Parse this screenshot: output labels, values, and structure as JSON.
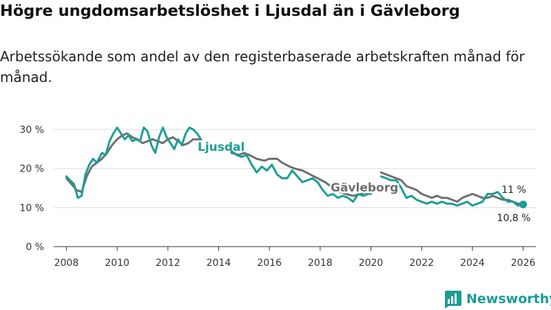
{
  "chart_data": {
    "type": "line",
    "title": "Högre ungdomsarbetslöshet i Ljusdal än i Gävleborg",
    "subtitle": "Arbetssökande som andel av den registerbaserade arbetskraften månad för månad.",
    "ylim": [
      0,
      30
    ],
    "yticks": [
      {
        "value": 0,
        "label": "0 %"
      },
      {
        "value": 10,
        "label": "10 %"
      },
      {
        "value": 20,
        "label": "20 %"
      },
      {
        "value": 30,
        "label": "30 %"
      }
    ],
    "xlim": [
      2007.5,
      2026.5
    ],
    "xticks": [
      {
        "value": 2008,
        "label": "2008"
      },
      {
        "value": 2010,
        "label": "2010"
      },
      {
        "value": 2012,
        "label": "2012"
      },
      {
        "value": 2014,
        "label": "2014"
      },
      {
        "value": 2016,
        "label": "2016"
      },
      {
        "value": 2018,
        "label": "2018"
      },
      {
        "value": 2020,
        "label": "2020"
      },
      {
        "value": 2022,
        "label": "2022"
      },
      {
        "value": 2024,
        "label": "2024"
      },
      {
        "value": 2026,
        "label": "2026"
      }
    ],
    "series": [
      {
        "name": "Gävleborg",
        "color": "#6f6f6f",
        "segments": [
          [
            [
              2008.0,
              17.5
            ],
            [
              2008.2,
              16.0
            ],
            [
              2008.4,
              14.5
            ],
            [
              2008.6,
              14.0
            ],
            [
              2008.8,
              18.0
            ],
            [
              2009.0,
              20.5
            ],
            [
              2009.2,
              21.5
            ],
            [
              2009.4,
              22.5
            ],
            [
              2009.6,
              24.0
            ],
            [
              2009.8,
              26.0
            ],
            [
              2010.0,
              27.5
            ],
            [
              2010.2,
              28.5
            ],
            [
              2010.4,
              29.0
            ],
            [
              2010.6,
              28.0
            ],
            [
              2010.8,
              27.5
            ],
            [
              2011.0,
              26.5
            ],
            [
              2011.2,
              27.0
            ],
            [
              2011.4,
              27.5
            ],
            [
              2011.6,
              27.0
            ],
            [
              2011.8,
              26.5
            ],
            [
              2012.0,
              27.5
            ],
            [
              2012.2,
              28.0
            ],
            [
              2012.4,
              27.0
            ],
            [
              2012.6,
              26.0
            ],
            [
              2012.8,
              26.5
            ],
            [
              2013.0,
              27.5
            ],
            [
              2013.3,
              27.5
            ]
          ],
          [
            [
              2014.5,
              24.0
            ],
            [
              2014.8,
              23.5
            ],
            [
              2015.0,
              24.0
            ],
            [
              2015.2,
              23.5
            ],
            [
              2015.5,
              22.5
            ],
            [
              2015.8,
              22.0
            ],
            [
              2016.0,
              22.5
            ],
            [
              2016.3,
              22.5
            ],
            [
              2016.5,
              21.5
            ],
            [
              2016.8,
              20.5
            ],
            [
              2017.0,
              20.0
            ],
            [
              2017.3,
              19.5
            ],
            [
              2017.6,
              18.5
            ],
            [
              2017.9,
              17.5
            ],
            [
              2018.2,
              16.5
            ],
            [
              2018.5,
              15.0
            ],
            [
              2018.8,
              14.0
            ],
            [
              2019.0,
              13.5
            ],
            [
              2019.3,
              13.0
            ],
            [
              2019.6,
              13.5
            ],
            [
              2019.9,
              14.0
            ],
            [
              2020.0,
              14.5
            ]
          ],
          [
            [
              2020.4,
              19.0
            ],
            [
              2020.6,
              18.5
            ],
            [
              2020.8,
              18.0
            ],
            [
              2021.0,
              17.5
            ],
            [
              2021.2,
              17.0
            ],
            [
              2021.4,
              15.5
            ],
            [
              2021.6,
              15.0
            ],
            [
              2021.8,
              14.5
            ],
            [
              2022.0,
              13.5
            ],
            [
              2022.2,
              13.0
            ],
            [
              2022.4,
              12.5
            ],
            [
              2022.6,
              13.0
            ],
            [
              2022.8,
              12.5
            ],
            [
              2023.0,
              12.5
            ],
            [
              2023.2,
              12.0
            ],
            [
              2023.4,
              11.5
            ],
            [
              2023.6,
              12.5
            ],
            [
              2023.8,
              13.0
            ],
            [
              2024.0,
              13.5
            ],
            [
              2024.2,
              13.0
            ],
            [
              2024.4,
              12.5
            ],
            [
              2024.6,
              12.5
            ],
            [
              2024.8,
              13.0
            ],
            [
              2025.0,
              12.5
            ],
            [
              2025.2,
              12.0
            ],
            [
              2025.4,
              12.0
            ],
            [
              2025.6,
              11.5
            ],
            [
              2025.8,
              11.0
            ],
            [
              2026.0,
              11.0
            ]
          ]
        ]
      },
      {
        "name": "Ljusdal",
        "color": "#1a9e97",
        "segments": [
          [
            [
              2008.0,
              18.0
            ],
            [
              2008.15,
              17.0
            ],
            [
              2008.3,
              16.0
            ],
            [
              2008.45,
              12.5
            ],
            [
              2008.6,
              13.0
            ],
            [
              2008.75,
              18.5
            ],
            [
              2008.9,
              21.0
            ],
            [
              2009.05,
              22.5
            ],
            [
              2009.2,
              21.5
            ],
            [
              2009.4,
              24.0
            ],
            [
              2009.55,
              23.5
            ],
            [
              2009.7,
              27.0
            ],
            [
              2009.85,
              29.0
            ],
            [
              2010.0,
              30.5
            ],
            [
              2010.15,
              29.0
            ],
            [
              2010.3,
              27.5
            ],
            [
              2010.45,
              28.5
            ],
            [
              2010.6,
              27.0
            ],
            [
              2010.75,
              27.5
            ],
            [
              2010.9,
              27.0
            ],
            [
              2011.05,
              30.5
            ],
            [
              2011.2,
              29.5
            ],
            [
              2011.35,
              26.0
            ],
            [
              2011.5,
              24.0
            ],
            [
              2011.65,
              28.0
            ],
            [
              2011.8,
              30.5
            ],
            [
              2011.95,
              28.0
            ],
            [
              2012.1,
              26.5
            ],
            [
              2012.25,
              25.0
            ],
            [
              2012.4,
              27.5
            ],
            [
              2012.55,
              26.0
            ],
            [
              2012.7,
              29.0
            ],
            [
              2012.85,
              30.5
            ],
            [
              2013.0,
              30.0
            ],
            [
              2013.15,
              29.0
            ],
            [
              2013.3,
              27.5
            ]
          ],
          [
            [
              2014.5,
              24.5
            ],
            [
              2014.7,
              23.5
            ],
            [
              2014.9,
              23.0
            ],
            [
              2015.1,
              23.5
            ],
            [
              2015.3,
              21.0
            ],
            [
              2015.5,
              19.0
            ],
            [
              2015.7,
              20.5
            ],
            [
              2015.9,
              19.5
            ],
            [
              2016.1,
              21.0
            ],
            [
              2016.3,
              18.5
            ],
            [
              2016.5,
              17.5
            ],
            [
              2016.7,
              17.5
            ],
            [
              2016.9,
              19.5
            ],
            [
              2017.1,
              18.0
            ],
            [
              2017.3,
              16.5
            ],
            [
              2017.5,
              17.0
            ],
            [
              2017.7,
              17.5
            ],
            [
              2017.9,
              16.5
            ],
            [
              2018.1,
              14.5
            ],
            [
              2018.3,
              13.0
            ],
            [
              2018.5,
              13.5
            ],
            [
              2018.7,
              12.5
            ],
            [
              2018.9,
              13.0
            ],
            [
              2019.1,
              12.5
            ],
            [
              2019.3,
              11.5
            ],
            [
              2019.5,
              13.5
            ],
            [
              2019.7,
              13.0
            ],
            [
              2019.9,
              13.5
            ],
            [
              2020.0,
              13.5
            ]
          ],
          [
            [
              2020.4,
              18.0
            ],
            [
              2020.6,
              17.5
            ],
            [
              2020.8,
              17.0
            ],
            [
              2021.0,
              17.0
            ],
            [
              2021.2,
              15.0
            ],
            [
              2021.4,
              12.5
            ],
            [
              2021.6,
              13.0
            ],
            [
              2021.8,
              12.0
            ],
            [
              2022.0,
              11.5
            ],
            [
              2022.2,
              11.0
            ],
            [
              2022.4,
              11.5
            ],
            [
              2022.6,
              11.0
            ],
            [
              2022.8,
              11.5
            ],
            [
              2023.0,
              11.0
            ],
            [
              2023.2,
              11.0
            ],
            [
              2023.4,
              10.5
            ],
            [
              2023.6,
              11.0
            ],
            [
              2023.8,
              11.5
            ],
            [
              2024.0,
              10.5
            ],
            [
              2024.2,
              11.0
            ],
            [
              2024.4,
              11.5
            ],
            [
              2024.6,
              13.5
            ],
            [
              2024.8,
              13.5
            ],
            [
              2025.0,
              14.0
            ],
            [
              2025.2,
              12.5
            ],
            [
              2025.4,
              11.5
            ],
            [
              2025.6,
              11.5
            ],
            [
              2025.8,
              10.5
            ],
            [
              2026.0,
              10.8
            ]
          ]
        ]
      }
    ],
    "annotations": [
      {
        "text": "Ljusdal",
        "series": "Ljusdal"
      },
      {
        "text": "Gävleborg",
        "series": "Gävleborg"
      },
      {
        "text": "11 %",
        "series": "Gävleborg",
        "x": 2026.0,
        "y": 11
      },
      {
        "text": "10,8 %",
        "series": "Ljusdal",
        "x": 2026.0,
        "y": 10.8
      }
    ]
  },
  "brand": {
    "name": "Newsworthy",
    "color": "#1b9c96"
  }
}
